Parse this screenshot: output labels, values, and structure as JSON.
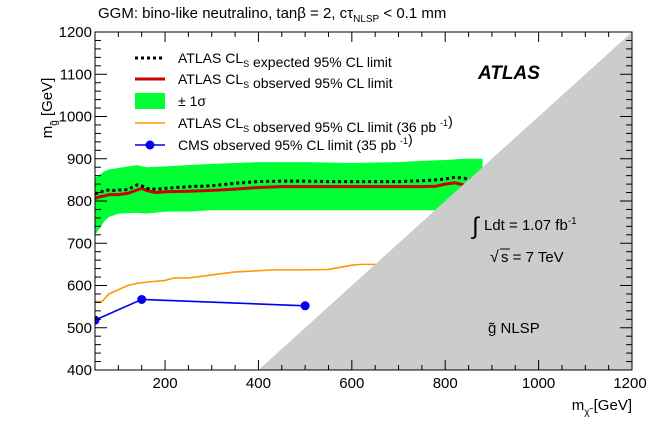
{
  "chart_data": {
    "type": "line",
    "title": "GGM: bino-like neutralino, tanβ = 2, cτ",
    "title_sub": "NLSP",
    "title_tail": " < 0.1 mm",
    "xlabel": "m",
    "xlabel_sub": "χ̃",
    "xlabel_unit": " [GeV]",
    "ylabel": "m",
    "ylabel_sub": "g̃",
    "ylabel_unit": " [GeV]",
    "xlim": [
      50,
      1200
    ],
    "ylim": [
      400,
      1200
    ],
    "x_ticks": [
      200,
      400,
      600,
      800,
      1000,
      1200
    ],
    "y_ticks": [
      400,
      500,
      600,
      700,
      800,
      900,
      1000,
      1100,
      1200
    ],
    "legend_position": "top-left",
    "grid": false,
    "series": [
      {
        "name": "ATLAS CLs expected 95% CL limit",
        "color": "#000000",
        "style": "dotted",
        "x": [
          50,
          60,
          70,
          80,
          90,
          100,
          120,
          140,
          150,
          160,
          180,
          200,
          250,
          300,
          350,
          400,
          450,
          500,
          550,
          600,
          650,
          700,
          750,
          780,
          800,
          820,
          840,
          860,
          870
        ],
        "y": [
          817,
          820,
          825,
          826,
          825,
          826,
          827,
          838,
          836,
          830,
          828,
          830,
          834,
          836,
          842,
          846,
          847,
          847,
          846,
          846,
          846,
          846,
          848,
          850,
          852,
          856,
          854,
          850,
          852
        ]
      },
      {
        "name": "ATLAS CLs observed 95% CL limit",
        "color": "#cc0000",
        "style": "solid",
        "x": [
          50,
          60,
          70,
          80,
          90,
          100,
          120,
          140,
          150,
          160,
          180,
          200,
          250,
          300,
          350,
          400,
          450,
          500,
          550,
          600,
          650,
          700,
          750,
          780,
          800,
          820,
          840,
          860,
          870
        ],
        "y": [
          806,
          810,
          812,
          815,
          815,
          815,
          818,
          826,
          830,
          825,
          820,
          822,
          823,
          825,
          828,
          832,
          834,
          834,
          834,
          834,
          834,
          834,
          834,
          835,
          840,
          843,
          838,
          836,
          838
        ]
      },
      {
        "name": "ATLAS CLs observed 95% CL limit (36 pb -1)",
        "color": "#ff9900",
        "style": "solid",
        "x": [
          50,
          65,
          80,
          100,
          120,
          140,
          160,
          200,
          220,
          250,
          280,
          300,
          350,
          400,
          430,
          500,
          550,
          600,
          620,
          650,
          660
        ],
        "y": [
          562,
          562,
          580,
          590,
          600,
          605,
          608,
          612,
          618,
          618,
          622,
          625,
          632,
          635,
          637,
          637,
          638,
          648,
          650,
          650,
          650
        ]
      },
      {
        "name": "CMS observed 95% CL limit (35 pb -1)",
        "color": "#0000ee",
        "style": "solid-markers",
        "x": [
          50,
          150,
          500
        ],
        "y": [
          518,
          567,
          552
        ]
      }
    ],
    "band": {
      "name": "± 1σ",
      "color": "#00ff33",
      "x": [
        50,
        60,
        70,
        80,
        100,
        140,
        160,
        200,
        250,
        300,
        400,
        500,
        600,
        700,
        750,
        800,
        840,
        870,
        880
      ],
      "upper": [
        855,
        862,
        870,
        875,
        878,
        885,
        880,
        882,
        885,
        888,
        892,
        892,
        890,
        892,
        895,
        897,
        900,
        900,
        900
      ],
      "lower": [
        720,
        735,
        752,
        762,
        770,
        772,
        770,
        775,
        775,
        778,
        778,
        778,
        778,
        778,
        778,
        778,
        775,
        772,
        770
      ]
    },
    "annotations": {
      "experiment": "ATLAS",
      "luminosity": "Ldt = 1.07 fb",
      "luminosity_exp": "-1",
      "sqrt_s": "s = 7 TeV",
      "region": "g̃ NLSP"
    },
    "excluded_region": {
      "description_label": "",
      "color": "#cccccc",
      "boundary_x": [
        400,
        1200
      ],
      "boundary_y": [
        400,
        1200
      ]
    }
  }
}
